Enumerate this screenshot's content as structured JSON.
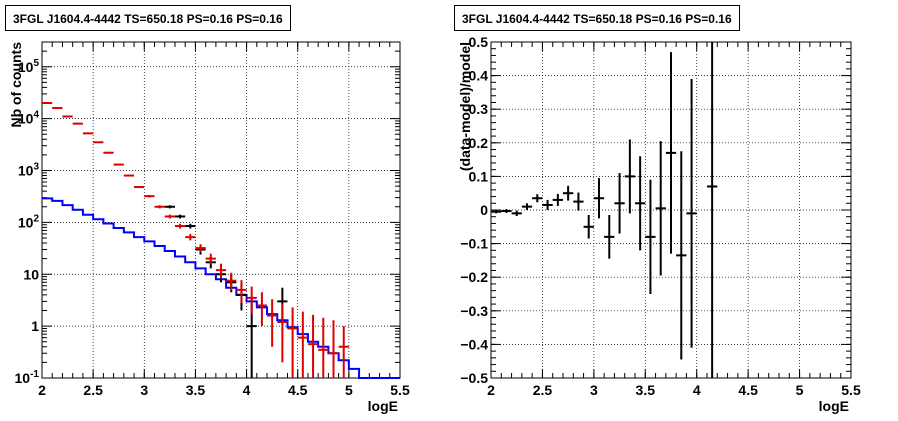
{
  "chart_data": [
    {
      "type": "line",
      "title": "3FGL J1604.4-4442 TS=650.18 PS=0.16 PS=0.16",
      "xlabel": "logE",
      "ylabel": "Nb of counts",
      "xlim": [
        2,
        5.5
      ],
      "ylim": [
        0.1,
        300000
      ],
      "yscale": "log",
      "grid": true,
      "x_tick_labels": [
        "2",
        "2.5",
        "3",
        "3.5",
        "4",
        "4.5",
        "5",
        "5.5"
      ],
      "y_tick_labels": [
        "10^-1",
        "1",
        "10",
        "10^2",
        "10^3",
        "10^4",
        "10^5"
      ],
      "bin_edges": [
        2.0,
        2.1,
        2.2,
        2.3,
        2.4,
        2.5,
        2.6,
        2.7,
        2.8,
        2.9,
        3.0,
        3.1,
        3.2,
        3.3,
        3.4,
        3.5,
        3.6,
        3.7,
        3.8,
        3.9,
        4.0,
        4.1,
        4.2,
        4.3,
        4.4,
        4.5,
        4.6,
        4.7,
        4.8,
        4.9,
        5.0,
        5.1,
        5.2,
        5.3,
        5.4,
        5.5
      ],
      "series": [
        {
          "kind": "step",
          "color": "#0000ff",
          "values": [
            290,
            260,
            215,
            175,
            140,
            115,
            95,
            78,
            64,
            52,
            43,
            35,
            28,
            22,
            17,
            13,
            10,
            8,
            5.5,
            4,
            3,
            2.3,
            1.7,
            1.3,
            0.95,
            0.7,
            0.5,
            0.4,
            0.3,
            0.22,
            0.15,
            0.1,
            0.1,
            0.1,
            0.1
          ]
        },
        {
          "kind": "errorbar",
          "color": "#000000",
          "x": [
            3.25,
            3.35,
            3.45,
            3.55,
            3.65,
            3.75,
            3.85,
            3.95,
            4.05,
            4.35
          ],
          "values": [
            200,
            130,
            85,
            30,
            17,
            10,
            7,
            4,
            1,
            3
          ],
          "err_low": [
            14,
            11,
            9,
            6,
            4,
            3,
            2.5,
            2,
            0.9,
            1.7
          ],
          "err_high": [
            14,
            11,
            9,
            6,
            4.5,
            3.5,
            3,
            2.5,
            2.5,
            2.5
          ]
        },
        {
          "kind": "errorbar",
          "color": "#dd0000",
          "x": [
            2.05,
            2.15,
            2.25,
            2.35,
            2.45,
            2.55,
            2.65,
            2.75,
            2.85,
            2.95,
            3.05,
            3.15,
            3.25,
            3.35,
            3.45,
            3.55,
            3.65,
            3.75,
            3.85,
            3.95,
            4.05,
            4.15,
            4.25,
            4.35,
            4.45,
            4.55,
            4.65,
            4.75,
            4.85,
            4.95
          ],
          "values": [
            20000,
            16000,
            11000,
            8000,
            5200,
            3500,
            2200,
            1300,
            800,
            480,
            320,
            200,
            130,
            85,
            52,
            32,
            20,
            12,
            7.5,
            5,
            3.5,
            2.5,
            1.6,
            1.2,
            0.9,
            0.6,
            0.45,
            0.35,
            0.3,
            0.4
          ],
          "err_low": [
            200,
            160,
            110,
            90,
            70,
            55,
            45,
            35,
            28,
            22,
            18,
            14,
            11,
            9,
            7,
            5.5,
            4.5,
            3.5,
            2.7,
            2.2,
            1.8,
            1.5,
            1.2,
            1.0,
            0.8,
            0.55,
            0.42,
            0.33,
            0.28,
            0.35
          ],
          "err_high": [
            200,
            160,
            110,
            90,
            70,
            55,
            45,
            35,
            28,
            22,
            18,
            14,
            11,
            9,
            7.5,
            6,
            5,
            4,
            3.2,
            2.7,
            2.3,
            2.0,
            1.7,
            1.5,
            1.4,
            1.3,
            1.2,
            1.1,
            1.0,
            0.6
          ]
        }
      ]
    },
    {
      "type": "scatter",
      "title": "3FGL J1604.4-4442 TS=650.18 PS=0.16 PS=0.16",
      "xlabel": "logE",
      "ylabel": "(data-model)/model",
      "xlim": [
        2,
        5.5
      ],
      "ylim": [
        -0.5,
        0.5
      ],
      "grid": true,
      "x_tick_labels": [
        "2",
        "2.5",
        "3",
        "3.5",
        "4",
        "4.5",
        "5",
        "5.5"
      ],
      "y_tick_labels": [
        "−0.5",
        "−0.4",
        "−0.3",
        "−0.2",
        "−0.1",
        "0",
        "0.1",
        "0.2",
        "0.3",
        "0.4",
        "0.5"
      ],
      "series": [
        {
          "kind": "errorbar",
          "color": "#000000",
          "x": [
            2.05,
            2.15,
            2.25,
            2.35,
            2.45,
            2.55,
            2.65,
            2.75,
            2.85,
            2.95,
            3.05,
            3.15,
            3.25,
            3.35,
            3.45,
            3.55,
            3.65,
            3.75,
            3.85,
            3.95,
            4.15
          ],
          "values": [
            -0.005,
            -0.003,
            -0.01,
            0.01,
            0.035,
            0.015,
            0.03,
            0.05,
            0.025,
            -0.05,
            0.035,
            -0.08,
            0.02,
            0.1,
            0.02,
            -0.08,
            0.005,
            0.17,
            -0.135,
            -0.01,
            0.07
          ],
          "err": [
            0.005,
            0.006,
            0.008,
            0.01,
            0.012,
            0.015,
            0.018,
            0.022,
            0.027,
            0.035,
            0.06,
            0.065,
            0.09,
            0.11,
            0.14,
            0.17,
            0.2,
            0.3,
            0.31,
            0.4,
            0.6
          ]
        }
      ]
    }
  ]
}
